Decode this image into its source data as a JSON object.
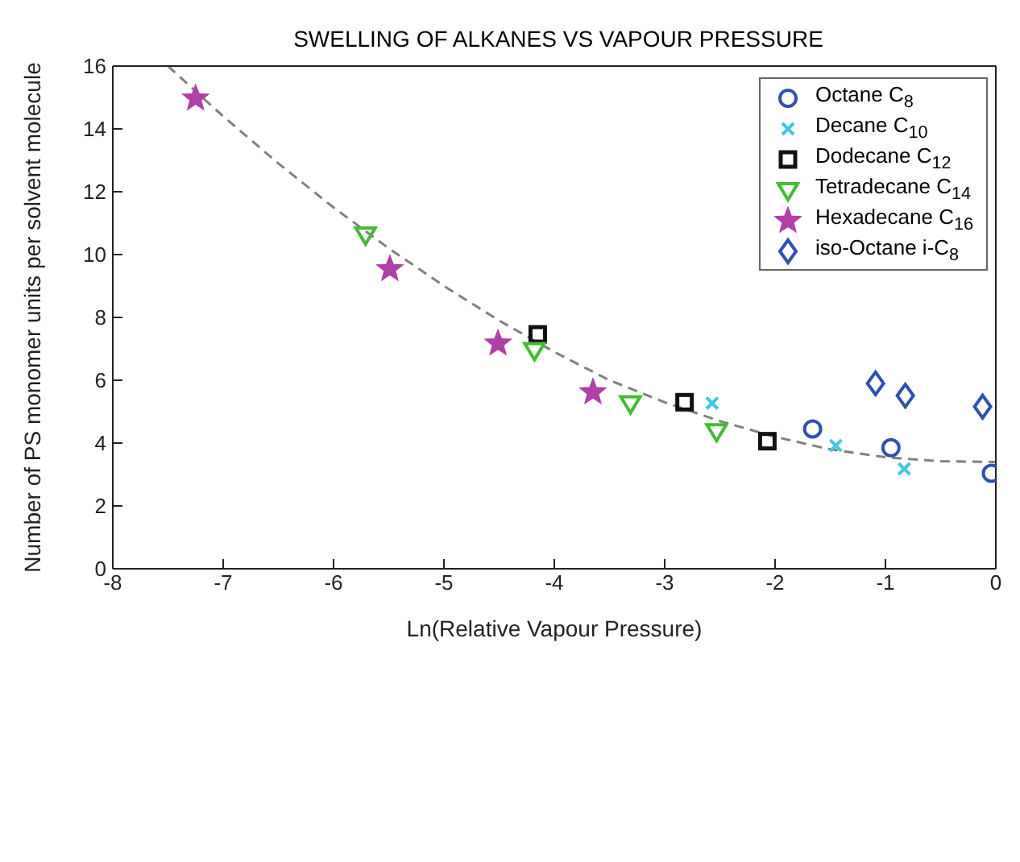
{
  "chart_data": {
    "type": "scatter",
    "title": "SWELLING OF ALKANES VS VAPOUR PRESSURE",
    "xlabel": "Ln(Relative Vapour Pressure)",
    "ylabel": "Number of PS monomer units per solvent molecule",
    "xlim": [
      -8,
      0
    ],
    "xticks": [
      -8,
      -7,
      -6,
      -5,
      -4,
      -3,
      -2,
      -1,
      0
    ],
    "ylim": [
      0,
      16
    ],
    "yticks": [
      0,
      2,
      4,
      6,
      8,
      10,
      12,
      14,
      16
    ],
    "grid": false,
    "legend": "top right",
    "series": [
      {
        "name": "Octane C$_{8}$",
        "color": "#3050b0",
        "marker": "circle",
        "x": [
          -1.66,
          -0.95,
          -0.04
        ],
        "values": [
          4.45,
          3.85,
          3.04
        ]
      },
      {
        "name": "Decane C$_{10}$",
        "color": "#40c8e0",
        "marker": "cross",
        "x": [
          -2.57,
          -1.45,
          -0.83
        ],
        "values": [
          5.27,
          3.92,
          3.18
        ]
      },
      {
        "name": "Dodecane C$_{12}$",
        "color": "#111111",
        "marker": "square",
        "x": [
          -4.15,
          -2.82,
          -2.07
        ],
        "values": [
          7.46,
          5.3,
          4.06
        ]
      },
      {
        "name": "Tetradecane C$_{14}$",
        "color": "#44bb33",
        "marker": "triangle",
        "x": [
          -5.71,
          -4.18,
          -3.31,
          -2.53
        ],
        "values": [
          10.64,
          6.96,
          5.27,
          4.38
        ]
      },
      {
        "name": "Hexadecane C$_{16}$",
        "color": "#b040a8",
        "marker": "star",
        "x": [
          -7.25,
          -5.49,
          -4.51,
          -3.65
        ],
        "values": [
          14.97,
          9.54,
          7.17,
          5.62
        ]
      },
      {
        "name": "iso-Octane i-C$_{8}$",
        "color": "#3050b0",
        "marker": "diamond",
        "x": [
          -1.09,
          -0.82,
          -0.12
        ],
        "values": [
          5.9,
          5.51,
          5.16
        ]
      },
      {
        "type": "line",
        "color": "#808080",
        "line_style": "dashed",
        "marker": "none",
        "x": [
          -7.5,
          -7,
          -6.5,
          -6,
          -5.5,
          -5,
          -4.5,
          -4,
          -3.5,
          -3,
          -2.5,
          -2,
          -1.5,
          -1,
          -0.5,
          0
        ],
        "values": [
          16,
          14.4,
          12.9,
          11.5,
          10.2,
          9.0,
          7.9,
          6.9,
          6.0,
          5.3,
          4.7,
          4.2,
          3.8,
          3.55,
          3.42,
          3.4
        ]
      }
    ]
  }
}
